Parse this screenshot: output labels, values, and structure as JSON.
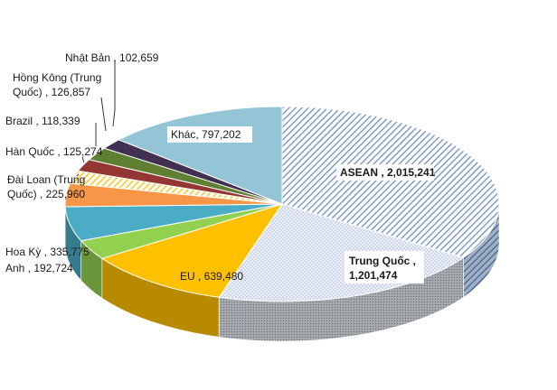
{
  "chart_data": {
    "type": "pie",
    "title": "",
    "slices": [
      {
        "label": "ASEAN",
        "value": 2015241,
        "value_text": "2,015,241",
        "color": "#8ea9c8",
        "pattern": "diag-blue"
      },
      {
        "label": "Trung Quốc",
        "value": 1201474,
        "value_text": "1,201,474",
        "color": "#dde6f2",
        "pattern": "dots"
      },
      {
        "label": "EU",
        "value": 639480,
        "value_text": "639,480",
        "color": "#ffc000",
        "pattern": "solid"
      },
      {
        "label": "Anh",
        "value": 192724,
        "value_text": "192,724",
        "color": "#92d050",
        "pattern": "solid"
      },
      {
        "label": "Hoa Kỳ",
        "value": 335775,
        "value_text": "335,775",
        "color": "#4bacc6",
        "pattern": "solid"
      },
      {
        "label": "Đài Loan (Trung Quốc)",
        "value": 225960,
        "value_text": "225,960",
        "color": "#f79646",
        "pattern": "solid"
      },
      {
        "label": "Hàn Quốc",
        "value": 125274,
        "value_text": "125,274",
        "color": "#ffd24d",
        "pattern": "diag-yellow"
      },
      {
        "label": "Brazil",
        "value": 118339,
        "value_text": "118,339",
        "color": "#943634",
        "pattern": "solid"
      },
      {
        "label": "Hồng Kông (Trung Quốc)",
        "value": 126857,
        "value_text": "126,857",
        "color": "#5f7f32",
        "pattern": "solid"
      },
      {
        "label": "Nhật Bản",
        "value": 102659,
        "value_text": "102,659",
        "color": "#403152",
        "pattern": "solid"
      },
      {
        "label": "Khác",
        "value": 797202,
        "value_text": "797,202",
        "color": "#93c5d6",
        "pattern": "solid"
      }
    ],
    "labels": {
      "asean": "ASEAN ,  2,015,241",
      "trung_quoc_1": "Trung Quốc ,",
      "trung_quoc_2": "1,201,474",
      "eu": "EU ,  639,480",
      "hoa_ky": "Hoa Kỳ ,  335,775",
      "anh": "Anh ,  192,724",
      "dai_loan_1": "Đài Loan (Trung",
      "dai_loan_2": "Quốc) ,  225,960",
      "han_quoc": "Hàn Quốc ,  125,274",
      "brazil": "Brazil ,  118,339",
      "hong_kong_1": "Hồng Kông (Trung",
      "hong_kong_2": "Quốc) ,  126,857",
      "nhat_ban": "Nhật Bản ,  102,659",
      "khac": "Khác,  797,202"
    }
  }
}
